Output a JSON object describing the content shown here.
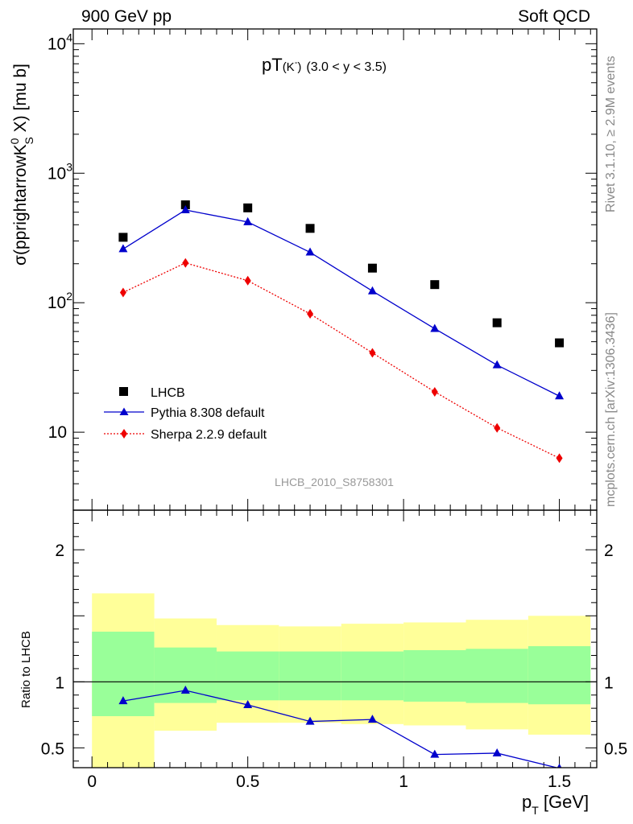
{
  "header": {
    "left": "900 GeV pp",
    "right": "Soft QCD"
  },
  "side_text": {
    "version": "Rivet 3.1.10, ≥ 2.9M events",
    "source": "mcplots.cern.ch [arXiv:1306.3436]"
  },
  "watermark": "LHCB_2010_S8758301",
  "chart_data": [
    {
      "type": "scatter",
      "panel": "main",
      "title_main": "pT",
      "title_particle": "(K",
      "title_particle_sup": "-",
      "title_particle_close": ")",
      "title_range": "(3.0 < y < 3.5)",
      "ylabel_pre": "σ(pprightarrowK",
      "ylabel_sup": "0",
      "ylabel_sub": "S",
      "ylabel_post": " X) [mu b]",
      "y_scale": "log",
      "ylim": [
        2.5,
        13000
      ],
      "xlim": [
        -0.06,
        1.62
      ],
      "y_tick_labels": [
        {
          "value": 10,
          "label": "10"
        },
        {
          "value": 100,
          "label": "10",
          "sup": "2"
        },
        {
          "value": 1000,
          "label": "10",
          "sup": "3"
        },
        {
          "value": 10000,
          "label": "10",
          "sup": "4"
        }
      ],
      "legend_position": "lower-left",
      "x": [
        0.1,
        0.3,
        0.5,
        0.7,
        0.9,
        1.1,
        1.3,
        1.5
      ],
      "series": [
        {
          "name": "LHCB",
          "marker": "square",
          "color": "#000000",
          "line": "none",
          "values": [
            320,
            570,
            540,
            375,
            185,
            138,
            70,
            49
          ]
        },
        {
          "name": "Pythia 8.308 default",
          "marker": "triangle",
          "color": "#0000cc",
          "line": "solid",
          "values": [
            260,
            520,
            420,
            245,
            123,
            63,
            33,
            19
          ]
        },
        {
          "name": "Sherpa 2.2.9 default",
          "marker": "diamond",
          "color": "#ee0000",
          "line": "dotted",
          "values": [
            120,
            203,
            148,
            82,
            41,
            20.5,
            10.8,
            6.3
          ]
        }
      ]
    },
    {
      "type": "line",
      "panel": "ratio",
      "ylabel": "Ratio to LHCB",
      "xlabel_pre": "p",
      "xlabel_sub": "T",
      "xlabel_post": " [GeV]",
      "ylim": [
        0.35,
        2.3
      ],
      "xlim": [
        -0.06,
        1.62
      ],
      "x_tick_labels": [
        {
          "value": 0,
          "label": "0"
        },
        {
          "value": 0.5,
          "label": "0.5"
        },
        {
          "value": 1,
          "label": "1"
        },
        {
          "value": 1.5,
          "label": "1.5"
        }
      ],
      "y_tick_labels": [
        {
          "value": 0.5,
          "label": "0.5"
        },
        {
          "value": 1,
          "label": "1"
        },
        {
          "value": 2,
          "label": "2"
        }
      ],
      "bins": [
        {
          "lo": 0.0,
          "hi": 0.2,
          "inner": [
            0.74,
            1.38
          ],
          "outer": [
            0.3,
            1.67
          ]
        },
        {
          "lo": 0.2,
          "hi": 0.4,
          "inner": [
            0.84,
            1.26
          ],
          "outer": [
            0.63,
            1.48
          ]
        },
        {
          "lo": 0.4,
          "hi": 0.6,
          "inner": [
            0.86,
            1.23
          ],
          "outer": [
            0.69,
            1.43
          ]
        },
        {
          "lo": 0.6,
          "hi": 0.8,
          "inner": [
            0.86,
            1.23
          ],
          "outer": [
            0.69,
            1.42
          ]
        },
        {
          "lo": 0.8,
          "hi": 1.0,
          "inner": [
            0.86,
            1.23
          ],
          "outer": [
            0.68,
            1.44
          ]
        },
        {
          "lo": 1.0,
          "hi": 1.2,
          "inner": [
            0.85,
            1.24
          ],
          "outer": [
            0.67,
            1.45
          ]
        },
        {
          "lo": 1.2,
          "hi": 1.4,
          "inner": [
            0.84,
            1.25
          ],
          "outer": [
            0.64,
            1.47
          ]
        },
        {
          "lo": 1.4,
          "hi": 1.6,
          "inner": [
            0.83,
            1.27
          ],
          "outer": [
            0.6,
            1.5
          ]
        }
      ],
      "x": [
        0.1,
        0.3,
        0.5,
        0.7,
        0.9,
        1.1,
        1.3,
        1.5
      ],
      "ratio_values": [
        0.855,
        0.935,
        0.825,
        0.7,
        0.715,
        0.45,
        0.46,
        0.345
      ],
      "ratio_color": "#0000cc",
      "band_colors": {
        "inner": "#99ff99",
        "outer": "#ffff99"
      }
    }
  ]
}
